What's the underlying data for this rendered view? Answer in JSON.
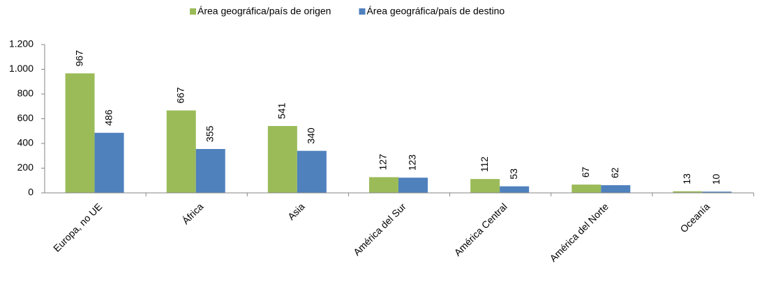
{
  "chart_data": {
    "type": "bar",
    "categories": [
      "Europa, no UE",
      "África",
      "Asia",
      "América del Sur",
      "América Central",
      "América del Norte",
      "Oceanía"
    ],
    "series": [
      {
        "name": "Área geográfica/país de origen",
        "color": "#9bbb59",
        "values": [
          967,
          667,
          541,
          127,
          112,
          67,
          13
        ]
      },
      {
        "name": "Área geográfica/país de destino",
        "color": "#4f81bd",
        "values": [
          486,
          355,
          340,
          123,
          53,
          62,
          10
        ]
      }
    ],
    "ylim": [
      0,
      1200
    ],
    "yticks": [
      0,
      200,
      400,
      600,
      800,
      {
        "value": 1000,
        "label": "1.000"
      },
      {
        "value": 1200,
        "label": "1.200"
      }
    ],
    "legend": "top"
  }
}
